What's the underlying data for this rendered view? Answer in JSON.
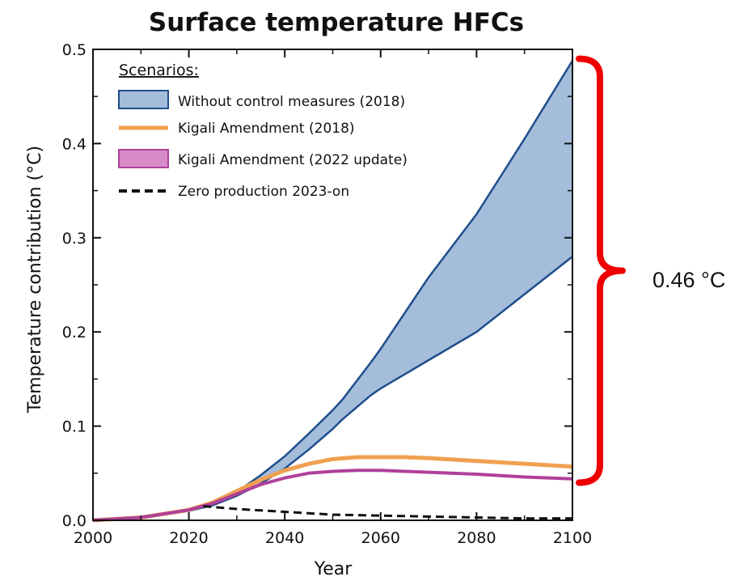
{
  "colors": {
    "band_fill": "#a3bddb",
    "band_edge": "#1f4e8c",
    "kigali_2018": "#f0a050",
    "kigali_2022": "#b0409a",
    "zero": "#111111",
    "brace": "#ee0000"
  },
  "chart_data": {
    "type": "area",
    "title": "Surface temperature HFCs",
    "xlabel": "Year",
    "ylabel": "Temperature contribution (°C)",
    "xlim": [
      2000,
      2100
    ],
    "ylim": [
      0,
      0.5
    ],
    "xticks": [
      "2000",
      "2020",
      "2040",
      "2060",
      "2080",
      "2100"
    ],
    "yticks": [
      "0.0",
      "0.1",
      "0.2",
      "0.3",
      "0.4",
      "0.5"
    ],
    "grid": false,
    "legend_position": "top-left",
    "legend_title": "Scenarios:",
    "band": {
      "name": "Without control measures (2018)",
      "x": [
        2000,
        2010,
        2020,
        2025,
        2030,
        2035,
        2040,
        2045,
        2050,
        2052,
        2055,
        2058,
        2060,
        2065,
        2070,
        2080,
        2090,
        2100
      ],
      "upper": [
        0,
        0.003,
        0.01,
        0.017,
        0.03,
        0.048,
        0.068,
        0.092,
        0.117,
        0.128,
        0.148,
        0.168,
        0.182,
        0.22,
        0.258,
        0.325,
        0.405,
        0.488
      ],
      "lower": [
        0,
        0.003,
        0.01,
        0.016,
        0.026,
        0.039,
        0.055,
        0.075,
        0.097,
        0.107,
        0.12,
        0.133,
        0.14,
        0.155,
        0.17,
        0.2,
        0.24,
        0.28
      ]
    },
    "series": [
      {
        "name": "Kigali Amendment (2018)",
        "x": [
          2000,
          2010,
          2020,
          2025,
          2030,
          2035,
          2040,
          2045,
          2050,
          2055,
          2060,
          2065,
          2070,
          2080,
          2090,
          2100
        ],
        "values": [
          0,
          0.003,
          0.011,
          0.019,
          0.031,
          0.043,
          0.053,
          0.06,
          0.065,
          0.067,
          0.067,
          0.067,
          0.066,
          0.063,
          0.06,
          0.057
        ]
      },
      {
        "name": "Kigali Amendment (2022 update)",
        "x": [
          2000,
          2010,
          2020,
          2025,
          2030,
          2035,
          2040,
          2045,
          2050,
          2055,
          2060,
          2065,
          2070,
          2080,
          2090,
          2100
        ],
        "values": [
          0,
          0.003,
          0.011,
          0.018,
          0.028,
          0.038,
          0.045,
          0.05,
          0.052,
          0.053,
          0.053,
          0.052,
          0.051,
          0.049,
          0.046,
          0.044
        ]
      },
      {
        "name": "Zero production 2023-on",
        "dashed": true,
        "x": [
          2023,
          2030,
          2040,
          2050,
          2060,
          2070,
          2080,
          2090,
          2100
        ],
        "values": [
          0.015,
          0.012,
          0.009,
          0.006,
          0.005,
          0.004,
          0.003,
          0.002,
          0.002
        ]
      }
    ],
    "annotation": {
      "label": "0.46 °C",
      "span": [
        0.04,
        0.49
      ]
    }
  }
}
